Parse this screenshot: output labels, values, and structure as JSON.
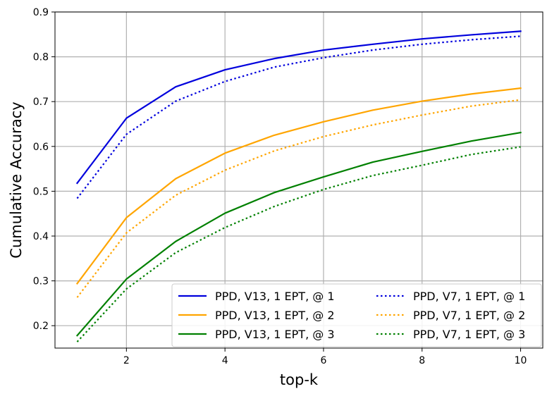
{
  "chart_data": {
    "type": "line",
    "xlabel": "top-k",
    "ylabel": "Cumulative Accuracy",
    "xlim": [
      0.55,
      10.45
    ],
    "ylim": [
      0.15,
      0.9
    ],
    "xticks": [
      2,
      4,
      6,
      8,
      10
    ],
    "yticks": [
      0.2,
      0.3,
      0.4,
      0.5,
      0.6,
      0.7,
      0.8,
      0.9
    ],
    "xtick_labels": [
      "2",
      "4",
      "6",
      "8",
      "10"
    ],
    "ytick_labels": [
      "0.2",
      "0.3",
      "0.4",
      "0.5",
      "0.6",
      "0.7",
      "0.8",
      "0.9"
    ],
    "grid": true,
    "legend_position": "lower-right",
    "x": [
      1,
      2,
      3,
      4,
      5,
      6,
      7,
      8,
      9,
      10
    ],
    "series": [
      {
        "name": "PPD, V13, 1 EPT, @ 1",
        "color": "#0000dd",
        "style": "solid",
        "values": [
          0.518,
          0.663,
          0.733,
          0.771,
          0.796,
          0.815,
          0.828,
          0.84,
          0.849,
          0.857
        ]
      },
      {
        "name": "PPD, V13, 1 EPT, @ 2",
        "color": "#ffa500",
        "style": "solid",
        "values": [
          0.294,
          0.441,
          0.528,
          0.585,
          0.625,
          0.655,
          0.681,
          0.701,
          0.717,
          0.73
        ]
      },
      {
        "name": "PPD, V13, 1 EPT, @ 3",
        "color": "#008000",
        "style": "solid",
        "values": [
          0.178,
          0.304,
          0.388,
          0.451,
          0.497,
          0.532,
          0.565,
          0.589,
          0.612,
          0.631
        ]
      },
      {
        "name": "PPD, V7, 1 EPT, @ 1",
        "color": "#0000dd",
        "style": "dotted",
        "values": [
          0.484,
          0.627,
          0.701,
          0.745,
          0.777,
          0.798,
          0.815,
          0.828,
          0.838,
          0.846
        ]
      },
      {
        "name": "PPD, V7, 1 EPT, @ 2",
        "color": "#ffa500",
        "style": "dotted",
        "values": [
          0.263,
          0.407,
          0.491,
          0.547,
          0.59,
          0.622,
          0.648,
          0.67,
          0.69,
          0.704
        ]
      },
      {
        "name": "PPD, V7, 1 EPT, @ 3",
        "color": "#008000",
        "style": "dotted",
        "values": [
          0.164,
          0.282,
          0.363,
          0.419,
          0.466,
          0.504,
          0.535,
          0.558,
          0.582,
          0.599
        ]
      }
    ]
  }
}
